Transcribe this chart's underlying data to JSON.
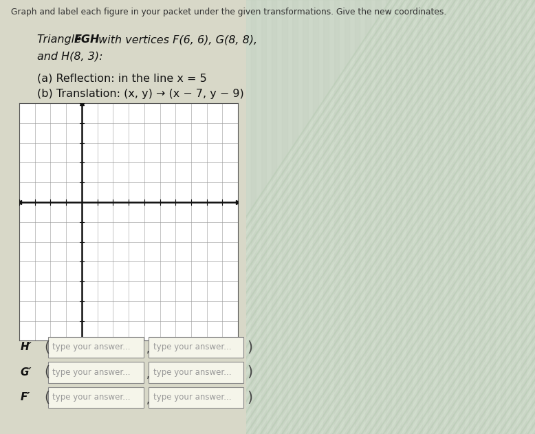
{
  "title_text": "Graph and label each figure in your packet under the given transformations. Give the new coordinates.",
  "triangle_prefix": "Triangle ",
  "triangle_bold": "FGH",
  "triangle_suffix": " with vertices F(6, 6), G(8, 8),",
  "triangle_line2": "and H(8, 3):",
  "part_a": "(a) Reflection: in the line x = 5",
  "part_b": "(b) Translation: (x, y) → (x − 7, y − 9)",
  "grid_line_color": "#999999",
  "grid_bg": "#ffffff",
  "axis_color": "#111111",
  "bg_left": "#d8d8c8",
  "bg_right_stripes_green": "#c8d8c0",
  "bg_right_stripes_white": "#e8ece8",
  "table_labels": [
    "F′",
    "G′",
    "H′"
  ],
  "placeholder": "type your answer...",
  "box_bg": "#f0f0e0",
  "box_border": "#aaaaaa",
  "title_color": "#333333",
  "text_color": "#111111"
}
